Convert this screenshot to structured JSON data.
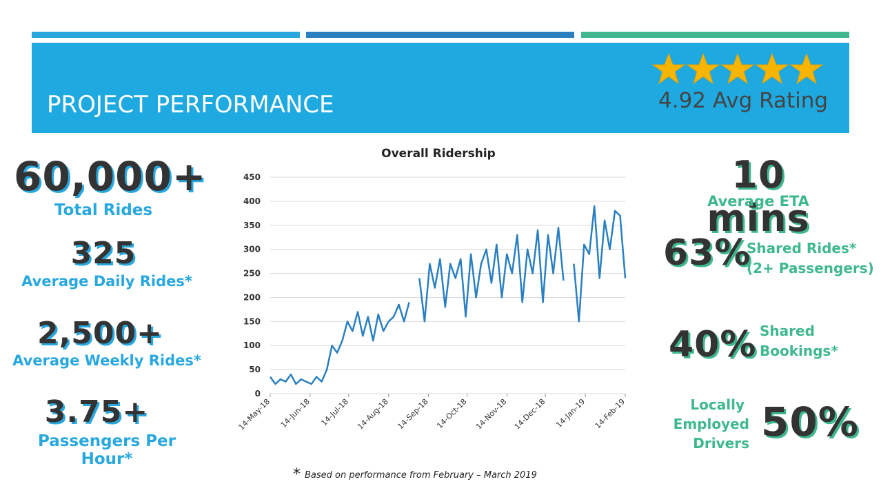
{
  "header": {
    "title": "PROJECT PERFORMANCE",
    "rating": "4.92 Avg Rating"
  },
  "left_stats": [
    {
      "value": "60,000+",
      "label": "Total Rides"
    },
    {
      "value": "325",
      "label": "Average Daily Rides*"
    },
    {
      "value": "2,500+",
      "label": "Average Weekly Rides*"
    },
    {
      "value": "3.75+",
      "label": "Passengers Per Hour*"
    }
  ],
  "right_stats": [
    {
      "value": "10 mins",
      "label": "Average ETA"
    },
    {
      "value": "63%",
      "label": [
        "Shared Rides*",
        "(2+ Passengers)"
      ]
    },
    {
      "value": "40%",
      "label": [
        "Shared",
        "Bookings*"
      ]
    },
    {
      "value": "50%",
      "label": [
        "Locally",
        "Employed",
        "Drivers"
      ]
    }
  ],
  "footnote": {
    "mark": "*",
    "text": "Based on performance from February – March 2019"
  },
  "chart_data": {
    "type": "line",
    "title": "Overall Ridership",
    "color": "#2a7fc1",
    "grid": true,
    "ylim": [
      0,
      450
    ],
    "yticks": [
      0,
      50,
      100,
      150,
      200,
      250,
      300,
      350,
      400,
      450
    ],
    "xlim": [
      "2018-05-14",
      "2019-02-14"
    ],
    "xticks": [
      {
        "value": "2018-05-14",
        "label": "14-May-18"
      },
      {
        "value": "2018-06-14",
        "label": "14-Jun-18"
      },
      {
        "value": "2018-07-14",
        "label": "14-Jul-18"
      },
      {
        "value": "2018-08-14",
        "label": "14-Aug-18"
      },
      {
        "value": "2018-09-14",
        "label": "14-Sep-18"
      },
      {
        "value": "2018-10-14",
        "label": "14-Oct-18"
      },
      {
        "value": "2018-11-14",
        "label": "14-Nov-18"
      },
      {
        "value": "2018-12-14",
        "label": "14-Dec-18"
      },
      {
        "value": "2019-01-14",
        "label": "14-Jan-19"
      },
      {
        "value": "2019-02-14",
        "label": "14-Feb-19"
      }
    ],
    "x": [
      "2018-05-14",
      "2018-05-18",
      "2018-05-22",
      "2018-05-26",
      "2018-05-30",
      "2018-06-03",
      "2018-06-07",
      "2018-06-11",
      "2018-06-15",
      "2018-06-19",
      "2018-06-23",
      "2018-06-27",
      "2018-07-01",
      "2018-07-05",
      "2018-07-09",
      "2018-07-13",
      "2018-07-17",
      "2018-07-21",
      "2018-07-25",
      "2018-07-29",
      "2018-08-02",
      "2018-08-06",
      "2018-08-10",
      "2018-08-14",
      "2018-08-18",
      "2018-08-22",
      "2018-08-26",
      "2018-08-30",
      "2018-09-03",
      "2018-09-07",
      "2018-09-11",
      "2018-09-15",
      "2018-09-19",
      "2018-09-23",
      "2018-09-27",
      "2018-10-01",
      "2018-10-05",
      "2018-10-09",
      "2018-10-13",
      "2018-10-17",
      "2018-10-21",
      "2018-10-25",
      "2018-10-29",
      "2018-11-02",
      "2018-11-06",
      "2018-11-10",
      "2018-11-14",
      "2018-11-18",
      "2018-11-22",
      "2018-11-26",
      "2018-11-30",
      "2018-12-04",
      "2018-12-08",
      "2018-12-12",
      "2018-12-16",
      "2018-12-20",
      "2018-12-24",
      "2018-12-28",
      "2019-01-01",
      "2019-01-05",
      "2019-01-09",
      "2019-01-13",
      "2019-01-17",
      "2019-01-21",
      "2019-01-25",
      "2019-01-29",
      "2019-02-02",
      "2019-02-06",
      "2019-02-10",
      "2019-02-14"
    ],
    "values": [
      35,
      20,
      30,
      25,
      40,
      20,
      30,
      25,
      20,
      35,
      25,
      50,
      100,
      85,
      110,
      150,
      130,
      170,
      120,
      160,
      110,
      165,
      130,
      150,
      160,
      185,
      150,
      190,
      null,
      240,
      150,
      270,
      220,
      280,
      180,
      270,
      240,
      280,
      160,
      290,
      200,
      270,
      300,
      230,
      310,
      200,
      290,
      250,
      330,
      190,
      300,
      250,
      340,
      190,
      330,
      250,
      345,
      235,
      null,
      270,
      150,
      310,
      290,
      390,
      240,
      360,
      300,
      380,
      370,
      240
    ]
  }
}
